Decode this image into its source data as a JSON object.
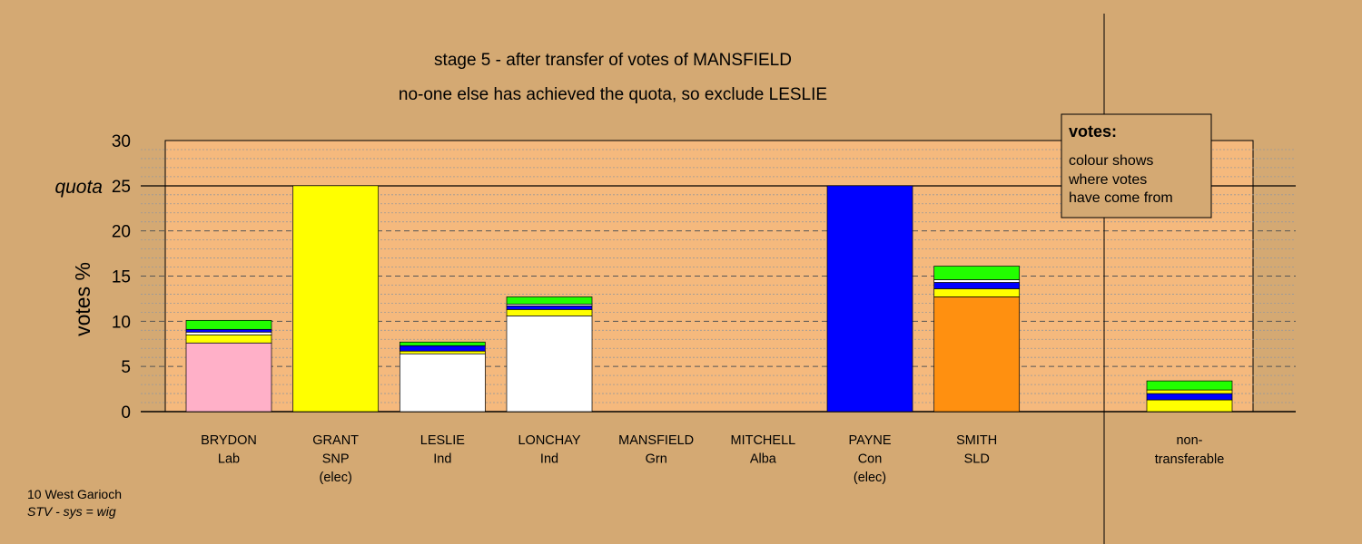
{
  "chart_data": {
    "type": "bar",
    "stacked": true,
    "title": "stage 5 - after transfer of votes of MANSFIELD",
    "subtitle": "no-one else has achieved the quota, so exclude LESLIE",
    "ylabel": "votes %",
    "ylim": [
      0,
      30
    ],
    "yticks": [
      "0",
      "5",
      "10",
      "15",
      "20",
      "25",
      "30"
    ],
    "quota": 25,
    "quota_label": "quota",
    "footer": [
      "10 West Garioch",
      "STV - sys = wig"
    ],
    "legend": {
      "title": "votes:",
      "lines": [
        "colour shows",
        "where votes",
        "have come from"
      ]
    },
    "colors": {
      "background": "#d4a973",
      "plot_area": "#f5b97d",
      "Lab": "#ffb0c8",
      "SNP": "#ffff00",
      "Ind": "#ffffff",
      "Con": "#0000ff",
      "SLD": "#ff9010",
      "Grn": "#22ff00"
    },
    "candidates": [
      {
        "name": "BRYDON",
        "party": "Lab",
        "note": "",
        "segments": [
          {
            "from": "Lab",
            "value": 7.6
          },
          {
            "from": "SNP",
            "value": 0.9
          },
          {
            "from": "Ind",
            "value": 0.3
          },
          {
            "from": "Con",
            "value": 0.3
          },
          {
            "from": "Grn",
            "value": 1.0
          }
        ]
      },
      {
        "name": "GRANT",
        "party": "SNP",
        "note": "(elec)",
        "segments": [
          {
            "from": "SNP",
            "value": 25.0
          }
        ]
      },
      {
        "name": "LESLIE",
        "party": "Ind",
        "note": "",
        "segments": [
          {
            "from": "Ind",
            "value": 6.4
          },
          {
            "from": "SNP",
            "value": 0.3
          },
          {
            "from": "Con",
            "value": 0.6
          },
          {
            "from": "Grn",
            "value": 0.4
          }
        ]
      },
      {
        "name": "LONCHAY",
        "party": "Ind",
        "note": "",
        "segments": [
          {
            "from": "Ind",
            "value": 10.6
          },
          {
            "from": "SNP",
            "value": 0.7
          },
          {
            "from": "Con",
            "value": 0.4
          },
          {
            "from": "Ind",
            "value": 0.2
          },
          {
            "from": "Grn",
            "value": 0.8
          }
        ]
      },
      {
        "name": "MANSFIELD",
        "party": "Grn",
        "note": "",
        "segments": []
      },
      {
        "name": "MITCHELL",
        "party": "Alba",
        "note": "",
        "segments": []
      },
      {
        "name": "PAYNE",
        "party": "Con",
        "note": "(elec)",
        "segments": [
          {
            "from": "Con",
            "value": 25.0
          }
        ]
      },
      {
        "name": "SMITH",
        "party": "SLD",
        "note": "",
        "segments": [
          {
            "from": "SLD",
            "value": 12.7
          },
          {
            "from": "SNP",
            "value": 0.9
          },
          {
            "from": "Con",
            "value": 0.7
          },
          {
            "from": "Ind",
            "value": 0.3
          },
          {
            "from": "Grn",
            "value": 1.5
          }
        ]
      }
    ],
    "nontransferable": {
      "label_lines": [
        "non-",
        "transferable"
      ],
      "segments": [
        {
          "from": "SNP",
          "value": 1.3
        },
        {
          "from": "Con",
          "value": 0.7
        },
        {
          "from": "SNP",
          "value": 0.4
        },
        {
          "from": "Grn",
          "value": 1.0
        }
      ]
    }
  }
}
